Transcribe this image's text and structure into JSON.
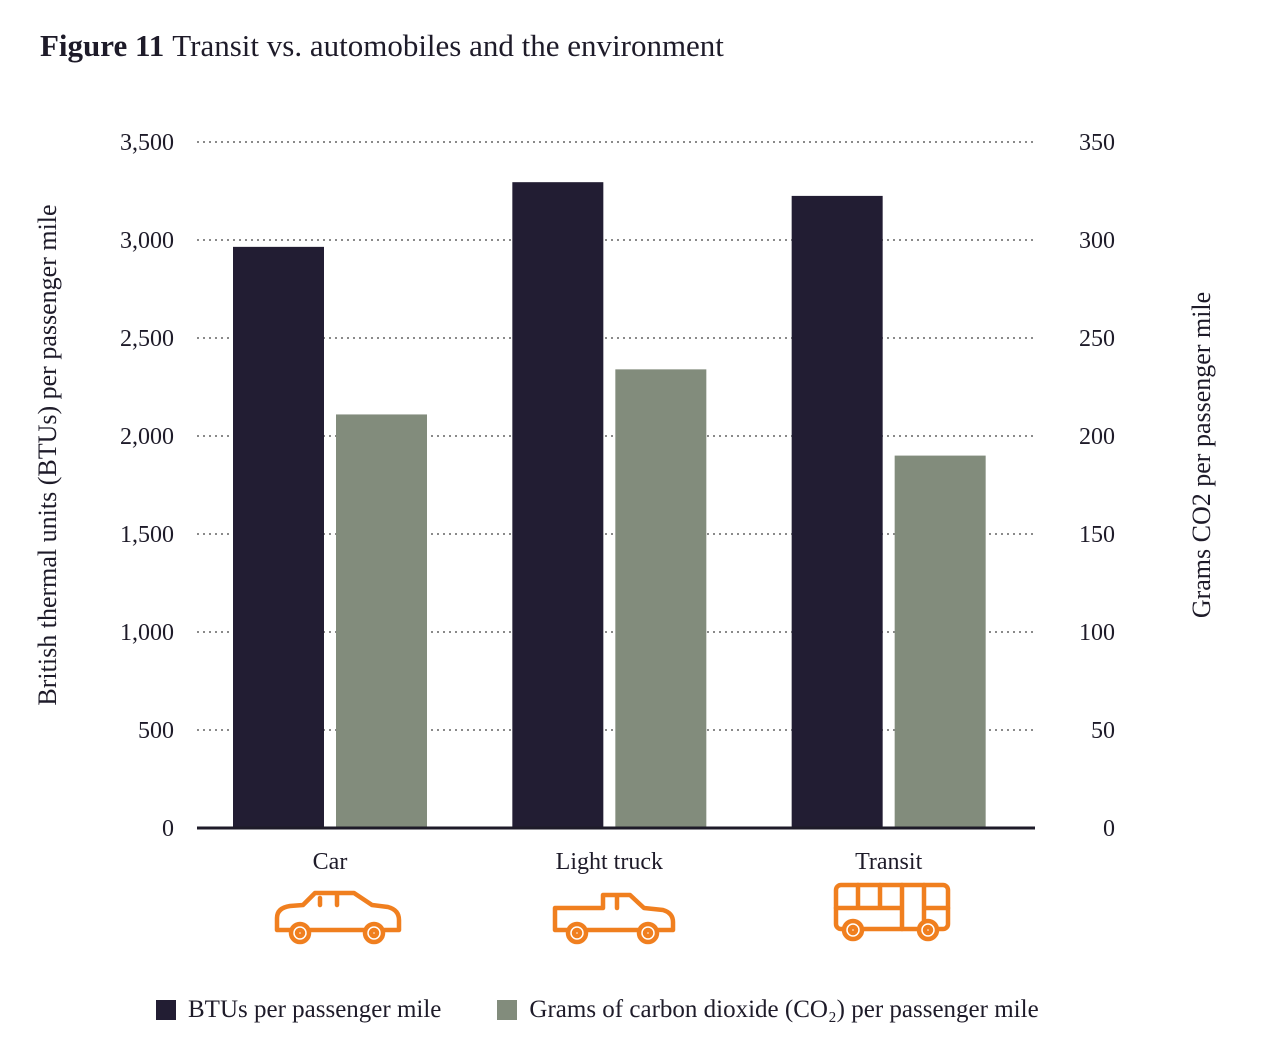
{
  "figure": {
    "label": "Figure 11",
    "title": "Transit vs. automobiles and the environment"
  },
  "chart_data": {
    "type": "bar",
    "categories": [
      "Car",
      "Light truck",
      "Transit"
    ],
    "series": [
      {
        "name": "BTUs per passenger mile",
        "axis": "left",
        "color": "#221d33",
        "values": [
          2965,
          3295,
          3225
        ]
      },
      {
        "name": "Grams of carbon dioxide (CO2) per passenger mile",
        "axis": "right",
        "color": "#828c7c",
        "values": [
          211,
          234,
          190
        ]
      }
    ],
    "ylabel_left": "British thermal units (BTUs) per passenger mile",
    "ylabel_right": "Grams CO2 per passenger mile",
    "ylim_left": [
      0,
      3500
    ],
    "ylim_right": [
      0,
      350
    ],
    "yticks_left": [
      "0",
      "500",
      "1,000",
      "1,500",
      "2,000",
      "2,500",
      "3,000",
      "3,500"
    ],
    "yticks_right": [
      "0",
      "50",
      "100",
      "150",
      "200",
      "250",
      "300",
      "350"
    ],
    "grid": true,
    "grid_style": "dotted",
    "legend_position": "bottom",
    "category_icons": [
      "car-icon",
      "light-truck-icon",
      "bus-icon"
    ],
    "icon_color": "#f07f1f"
  },
  "legend": {
    "items": [
      {
        "label": "BTUs per passenger mile",
        "color": "#221d33"
      },
      {
        "label": "Grams of carbon dioxide (CO₂) per passenger mile",
        "color": "#828c7c"
      }
    ]
  }
}
